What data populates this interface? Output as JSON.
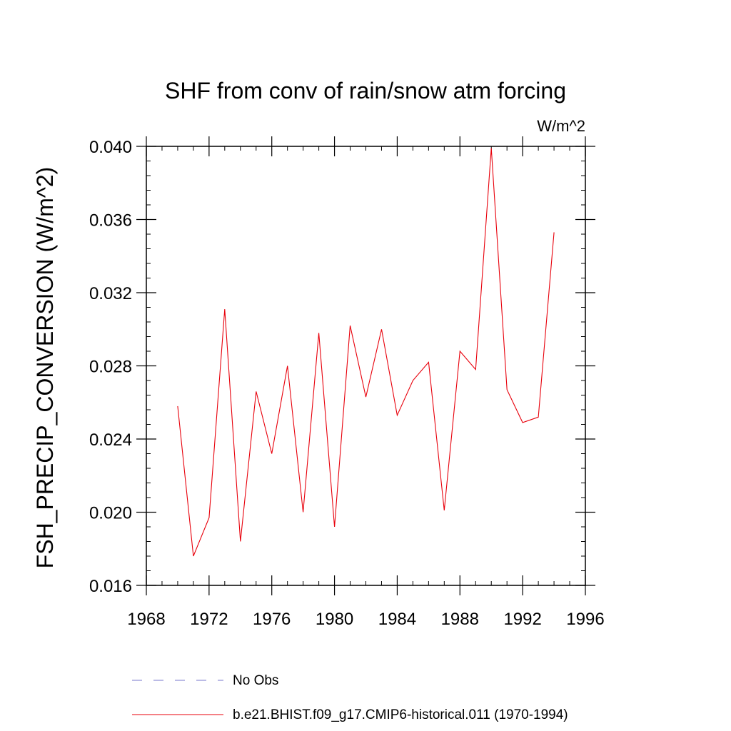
{
  "chart_data": {
    "type": "line",
    "title": "SHF from conv of rain/snow atm forcing",
    "units": "W/m^2",
    "xlabel": "",
    "ylabel": "FSH_PRECIP_CONVERSION  (W/m^2)",
    "xlim": [
      1968,
      1996
    ],
    "ylim": [
      0.016,
      0.04
    ],
    "x_ticks": [
      1968,
      1972,
      1976,
      1980,
      1984,
      1988,
      1992,
      1996
    ],
    "x_tick_labels": [
      "1968",
      "1972",
      "1976",
      "1980",
      "1984",
      "1988",
      "1992",
      "1996"
    ],
    "y_ticks": [
      0.016,
      0.02,
      0.024,
      0.028,
      0.032,
      0.036,
      0.04
    ],
    "y_tick_labels": [
      "0.016",
      "0.020",
      "0.024",
      "0.028",
      "0.032",
      "0.036",
      "0.040"
    ],
    "grid": false,
    "legend_position": "bottom",
    "series": [
      {
        "name": "b.e21.BHIST.f09_g17.CMIP6-historical.011 (1970-1994)",
        "color": "#e8000b",
        "style": "solid",
        "x": [
          1970,
          1971,
          1972,
          1973,
          1974,
          1975,
          1976,
          1977,
          1978,
          1979,
          1980,
          1981,
          1982,
          1983,
          1984,
          1985,
          1986,
          1987,
          1988,
          1989,
          1990,
          1991,
          1992,
          1993,
          1994
        ],
        "y": [
          0.0258,
          0.0176,
          0.0197,
          0.0311,
          0.0184,
          0.0266,
          0.0232,
          0.028,
          0.02,
          0.0298,
          0.0192,
          0.0302,
          0.0263,
          0.03,
          0.0253,
          0.0272,
          0.0282,
          0.0201,
          0.0288,
          0.0278,
          0.0399,
          0.0267,
          0.0249,
          0.0252,
          0.0353
        ]
      }
    ],
    "legend_entries": [
      {
        "label": "No Obs",
        "color": "#7777cc",
        "style": "dashed"
      },
      {
        "label": "b.e21.BHIST.f09_g17.CMIP6-historical.011 (1970-1994)",
        "color": "#e8000b",
        "style": "solid"
      }
    ]
  }
}
